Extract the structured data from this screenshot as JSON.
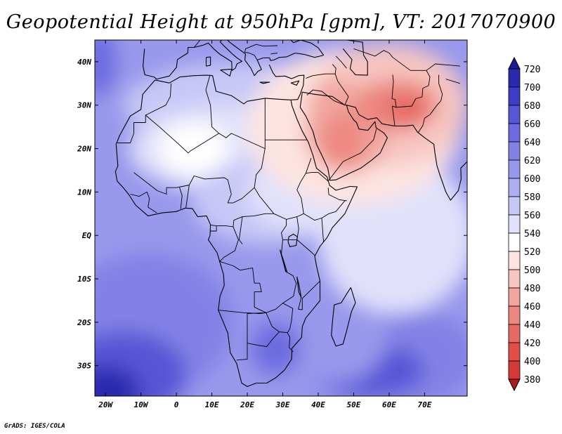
{
  "title": "Geopotential Height at 950hPa [gpm], VT: 2017070900",
  "credit": "GrADS: IGES/COLA",
  "chart_data": {
    "type": "heatmap",
    "variable": "Geopotential Height at 950hPa",
    "units": "gpm",
    "valid_time": "2017070900",
    "lon_range": [
      -23,
      82
    ],
    "lat_range": [
      -37,
      45
    ],
    "x_ticks": [
      {
        "value": -20,
        "label": "20W"
      },
      {
        "value": -10,
        "label": "10W"
      },
      {
        "value": 0,
        "label": "0"
      },
      {
        "value": 10,
        "label": "10E"
      },
      {
        "value": 20,
        "label": "20E"
      },
      {
        "value": 30,
        "label": "30E"
      },
      {
        "value": 40,
        "label": "40E"
      },
      {
        "value": 50,
        "label": "50E"
      },
      {
        "value": 60,
        "label": "60E"
      },
      {
        "value": 70,
        "label": "70E"
      }
    ],
    "y_ticks": [
      {
        "value": 40,
        "label": "40N"
      },
      {
        "value": 30,
        "label": "30N"
      },
      {
        "value": 20,
        "label": "20N"
      },
      {
        "value": 10,
        "label": "10N"
      },
      {
        "value": 0,
        "label": "EQ"
      },
      {
        "value": -10,
        "label": "10S"
      },
      {
        "value": -20,
        "label": "20S"
      },
      {
        "value": -30,
        "label": "30S"
      }
    ],
    "colorbar": {
      "levels": [
        380,
        400,
        420,
        440,
        460,
        480,
        500,
        520,
        540,
        560,
        580,
        600,
        620,
        640,
        660,
        680,
        700,
        720
      ],
      "colors": [
        "#b21a1e",
        "#d23a37",
        "#e34d48",
        "#e66a63",
        "#ec8780",
        "#f2a59f",
        "#f7c6c1",
        "#fde4e1",
        "#ffffff",
        "#e1e1fb",
        "#c8c8f7",
        "#aeaef2",
        "#9898ec",
        "#8282e6",
        "#6c6ce0",
        "#5656d6",
        "#3d3dc5",
        "#2a2ab0",
        "#1c1c99"
      ]
    },
    "features": [
      {
        "name": "saudi-arabia-low",
        "lon": 47,
        "lat": 23,
        "value": 440
      },
      {
        "name": "iran-pakistan-low",
        "lon": 63,
        "lat": 29,
        "value": 420
      },
      {
        "name": "sahara-low",
        "lon": 5,
        "lat": 21,
        "value": 520
      },
      {
        "name": "south-atlantic-high",
        "lon": -20,
        "lat": -35,
        "value": 700
      },
      {
        "name": "indian-ocean-high",
        "lon": 55,
        "lat": -30,
        "value": 660
      },
      {
        "name": "south-africa-high",
        "lon": 28,
        "lat": -27,
        "value": 640
      },
      {
        "name": "atlantic-west-high",
        "lon": -22,
        "lat": 38,
        "value": 640
      }
    ]
  }
}
